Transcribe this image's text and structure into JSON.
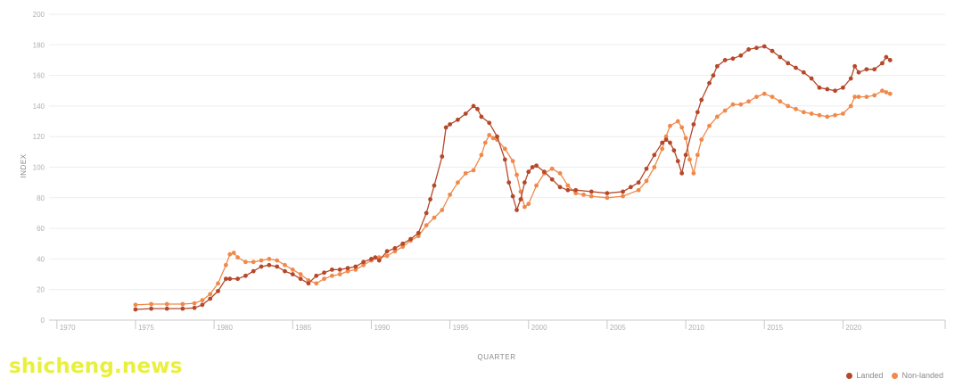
{
  "chart_data": {
    "type": "line",
    "xlabel": "QUARTER",
    "ylabel": "INDEX",
    "xlim": [
      1969.5,
      2026.5
    ],
    "ylim": [
      0,
      200
    ],
    "x_ticks": [
      1970,
      1975,
      1980,
      1985,
      1990,
      1995,
      2000,
      2005,
      2010,
      2015,
      2020
    ],
    "y_ticks": [
      0,
      20,
      40,
      60,
      80,
      100,
      120,
      140,
      160,
      180,
      200
    ],
    "grid": "horizontal",
    "legend_position": "bottom-right",
    "series": [
      {
        "name": "Landed",
        "color": "#b5482a",
        "points": [
          [
            1975.0,
            7
          ],
          [
            1976.0,
            7.5
          ],
          [
            1977.0,
            7.5
          ],
          [
            1978.0,
            7.5
          ],
          [
            1978.75,
            8
          ],
          [
            1979.25,
            10
          ],
          [
            1979.75,
            14
          ],
          [
            1980.25,
            19
          ],
          [
            1980.75,
            27
          ],
          [
            1981.0,
            27
          ],
          [
            1981.5,
            27
          ],
          [
            1982.0,
            29
          ],
          [
            1982.5,
            32
          ],
          [
            1983.0,
            35
          ],
          [
            1983.5,
            36
          ],
          [
            1984.0,
            35
          ],
          [
            1984.5,
            32
          ],
          [
            1985.0,
            30
          ],
          [
            1985.5,
            27
          ],
          [
            1986.0,
            24
          ],
          [
            1986.5,
            29
          ],
          [
            1987.0,
            31
          ],
          [
            1987.5,
            33
          ],
          [
            1988.0,
            33
          ],
          [
            1988.5,
            34
          ],
          [
            1989.0,
            35
          ],
          [
            1989.5,
            38
          ],
          [
            1990.0,
            40
          ],
          [
            1990.25,
            41
          ],
          [
            1990.5,
            39
          ],
          [
            1991.0,
            45
          ],
          [
            1991.5,
            47
          ],
          [
            1992.0,
            50
          ],
          [
            1992.5,
            53
          ],
          [
            1993.0,
            57
          ],
          [
            1993.5,
            70
          ],
          [
            1993.75,
            79
          ],
          [
            1994.0,
            88
          ],
          [
            1994.5,
            107
          ],
          [
            1994.75,
            126
          ],
          [
            1995.0,
            128
          ],
          [
            1995.5,
            131
          ],
          [
            1996.0,
            135
          ],
          [
            1996.5,
            140
          ],
          [
            1996.75,
            138
          ],
          [
            1997.0,
            133
          ],
          [
            1997.5,
            129
          ],
          [
            1998.0,
            120
          ],
          [
            1998.5,
            105
          ],
          [
            1998.75,
            90
          ],
          [
            1999.0,
            81
          ],
          [
            1999.25,
            72
          ],
          [
            1999.5,
            79
          ],
          [
            1999.75,
            90
          ],
          [
            2000.0,
            97
          ],
          [
            2000.25,
            100
          ],
          [
            2000.5,
            101
          ],
          [
            2001.0,
            97
          ],
          [
            2001.5,
            92
          ],
          [
            2002.0,
            87
          ],
          [
            2002.5,
            85
          ],
          [
            2003.0,
            85
          ],
          [
            2004.0,
            84
          ],
          [
            2005.0,
            83
          ],
          [
            2006.0,
            84
          ],
          [
            2006.5,
            87
          ],
          [
            2007.0,
            90
          ],
          [
            2007.5,
            99
          ],
          [
            2008.0,
            108
          ],
          [
            2008.5,
            116
          ],
          [
            2008.75,
            118
          ],
          [
            2009.0,
            116
          ],
          [
            2009.25,
            111
          ],
          [
            2009.5,
            104
          ],
          [
            2009.75,
            96
          ],
          [
            2010.0,
            108
          ],
          [
            2010.5,
            128
          ],
          [
            2010.75,
            136
          ],
          [
            2011.0,
            144
          ],
          [
            2011.5,
            155
          ],
          [
            2011.75,
            160
          ],
          [
            2012.0,
            166
          ],
          [
            2012.5,
            170
          ],
          [
            2013.0,
            171
          ],
          [
            2013.5,
            173
          ],
          [
            2014.0,
            177
          ],
          [
            2014.5,
            178
          ],
          [
            2015.0,
            179
          ],
          [
            2015.5,
            176
          ],
          [
            2016.0,
            172
          ],
          [
            2016.5,
            168
          ],
          [
            2017.0,
            165
          ],
          [
            2017.5,
            162
          ],
          [
            2018.0,
            158
          ],
          [
            2018.5,
            152
          ],
          [
            2019.0,
            151
          ],
          [
            2019.5,
            150
          ],
          [
            2020.0,
            152
          ],
          [
            2020.5,
            158
          ],
          [
            2020.75,
            166
          ],
          [
            2021.0,
            162
          ],
          [
            2021.5,
            164
          ],
          [
            2022.0,
            164
          ],
          [
            2022.5,
            168
          ],
          [
            2022.75,
            172
          ],
          [
            2023.0,
            170
          ]
        ]
      },
      {
        "name": "Non-landed",
        "color": "#f0894a",
        "points": [
          [
            1975.0,
            10
          ],
          [
            1976.0,
            10.5
          ],
          [
            1977.0,
            10.5
          ],
          [
            1978.0,
            10.5
          ],
          [
            1978.75,
            11
          ],
          [
            1979.25,
            13
          ],
          [
            1979.75,
            17
          ],
          [
            1980.25,
            24
          ],
          [
            1980.75,
            36
          ],
          [
            1981.0,
            43
          ],
          [
            1981.25,
            44
          ],
          [
            1981.5,
            41
          ],
          [
            1982.0,
            38
          ],
          [
            1982.5,
            38
          ],
          [
            1983.0,
            39
          ],
          [
            1983.5,
            40
          ],
          [
            1984.0,
            39
          ],
          [
            1984.5,
            36
          ],
          [
            1985.0,
            33
          ],
          [
            1985.5,
            30
          ],
          [
            1986.0,
            26
          ],
          [
            1986.5,
            24
          ],
          [
            1987.0,
            27
          ],
          [
            1987.5,
            29
          ],
          [
            1988.0,
            30
          ],
          [
            1988.5,
            32
          ],
          [
            1989.0,
            33
          ],
          [
            1989.5,
            36
          ],
          [
            1990.0,
            39
          ],
          [
            1990.5,
            41
          ],
          [
            1991.0,
            42
          ],
          [
            1991.5,
            45
          ],
          [
            1992.0,
            48
          ],
          [
            1992.5,
            52
          ],
          [
            1993.0,
            55
          ],
          [
            1993.5,
            62
          ],
          [
            1994.0,
            67
          ],
          [
            1994.5,
            72
          ],
          [
            1995.0,
            82
          ],
          [
            1995.5,
            90
          ],
          [
            1996.0,
            96
          ],
          [
            1996.5,
            98
          ],
          [
            1997.0,
            108
          ],
          [
            1997.25,
            116
          ],
          [
            1997.5,
            121
          ],
          [
            1997.75,
            119
          ],
          [
            1998.0,
            118
          ],
          [
            1998.5,
            112
          ],
          [
            1999.0,
            104
          ],
          [
            1999.25,
            95
          ],
          [
            1999.5,
            84
          ],
          [
            1999.75,
            74
          ],
          [
            2000.0,
            76
          ],
          [
            2000.5,
            88
          ],
          [
            2001.0,
            96
          ],
          [
            2001.5,
            99
          ],
          [
            2002.0,
            96
          ],
          [
            2002.5,
            88
          ],
          [
            2003.0,
            83
          ],
          [
            2003.5,
            82
          ],
          [
            2004.0,
            81
          ],
          [
            2005.0,
            80
          ],
          [
            2006.0,
            81
          ],
          [
            2007.0,
            85
          ],
          [
            2007.5,
            91
          ],
          [
            2008.0,
            100
          ],
          [
            2008.5,
            112
          ],
          [
            2008.75,
            120
          ],
          [
            2009.0,
            127
          ],
          [
            2009.5,
            130
          ],
          [
            2009.75,
            126
          ],
          [
            2010.0,
            119
          ],
          [
            2010.25,
            105
          ],
          [
            2010.5,
            96
          ],
          [
            2010.75,
            108
          ],
          [
            2011.0,
            118
          ],
          [
            2011.5,
            127
          ],
          [
            2012.0,
            133
          ],
          [
            2012.5,
            137
          ],
          [
            2013.0,
            141
          ],
          [
            2013.5,
            141
          ],
          [
            2014.0,
            143
          ],
          [
            2014.5,
            146
          ],
          [
            2015.0,
            148
          ],
          [
            2015.5,
            146
          ],
          [
            2016.0,
            143
          ],
          [
            2016.5,
            140
          ],
          [
            2017.0,
            138
          ],
          [
            2017.5,
            136
          ],
          [
            2018.0,
            135
          ],
          [
            2018.5,
            134
          ],
          [
            2019.0,
            133
          ],
          [
            2019.5,
            134
          ],
          [
            2020.0,
            135
          ],
          [
            2020.5,
            140
          ],
          [
            2020.75,
            146
          ],
          [
            2021.0,
            146
          ],
          [
            2021.5,
            146
          ],
          [
            2022.0,
            147
          ],
          [
            2022.5,
            150
          ],
          [
            2022.75,
            149
          ],
          [
            2023.0,
            148
          ]
        ]
      }
    ]
  },
  "watermark": "shicheng.news"
}
